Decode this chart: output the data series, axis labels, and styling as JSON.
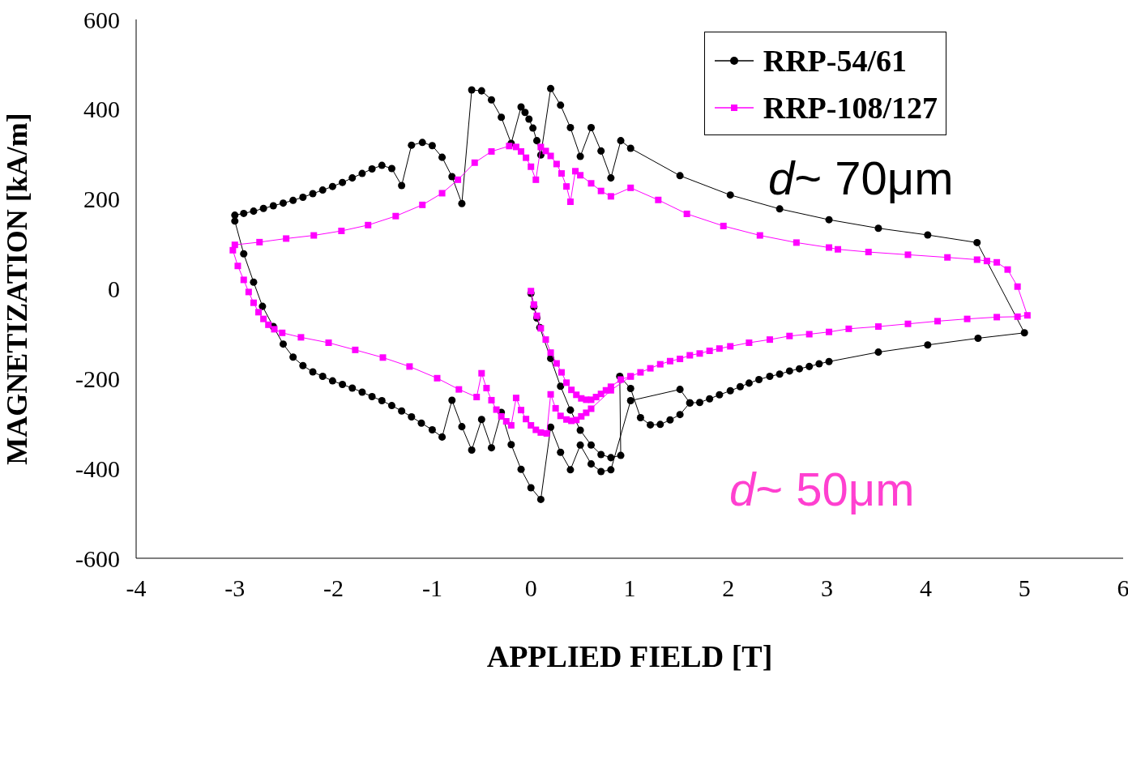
{
  "chart_data": {
    "type": "line",
    "xlabel": "APPLIED  FIELD [T]",
    "ylabel": "MAGNETIZATION [kA/m]",
    "xlim": [
      -4,
      6
    ],
    "xticks": [
      -4,
      -3,
      -2,
      -1,
      0,
      1,
      2,
      3,
      4,
      5,
      6
    ],
    "ylim": [
      -600,
      600
    ],
    "yticks": [
      -600,
      -400,
      -200,
      0,
      200,
      400,
      600
    ],
    "grid": false,
    "legend": "top right",
    "annotations": [
      "d~ 70μm",
      "d~ 50μm"
    ],
    "series": [
      {
        "name": "RRP-54/61",
        "color": "#000000",
        "marker": "circle",
        "x": [
          0,
          0.03,
          0.06,
          0.09,
          0.2,
          0.3,
          0.4,
          0.5,
          0.61,
          0.71,
          0.81,
          0.91,
          0.9,
          1.01,
          1.11,
          1.21,
          1.31,
          1.41,
          1.51,
          1.61,
          1.71,
          1.81,
          1.91,
          2.02,
          2.12,
          2.21,
          2.31,
          2.42,
          2.52,
          2.62,
          2.72,
          2.82,
          2.92,
          3.02,
          3.52,
          4.02,
          4.53,
          5.0,
          4.52,
          4.02,
          3.52,
          3.02,
          2.52,
          2.02,
          1.51,
          1.01,
          0.91,
          0.81,
          0.71,
          0.61,
          0.5,
          0.4,
          0.3,
          0.2,
          0.1,
          0.06,
          0.02,
          -0.02,
          -0.06,
          -0.1,
          -0.2,
          -0.3,
          -0.4,
          -0.5,
          -0.6,
          -0.7,
          -0.8,
          -0.9,
          -1.0,
          -1.1,
          -1.21,
          -1.31,
          -1.41,
          -1.51,
          -1.61,
          -1.71,
          -1.81,
          -1.91,
          -2.01,
          -2.11,
          -2.21,
          -2.31,
          -2.41,
          -2.51,
          -2.61,
          -2.71,
          -2.81,
          -2.91,
          -3.0,
          -3.0,
          -2.91,
          -2.81,
          -2.72,
          -2.61,
          -2.51,
          -2.41,
          -2.31,
          -2.21,
          -2.11,
          -2.01,
          -1.91,
          -1.81,
          -1.71,
          -1.61,
          -1.51,
          -1.41,
          -1.31,
          -1.21,
          -1.11,
          -1.0,
          -0.9,
          -0.8,
          -0.7,
          -0.6,
          -0.5,
          -0.4,
          -0.3,
          -0.2,
          -0.1,
          0.0,
          0.1,
          0.2,
          0.3,
          0.4,
          0.5,
          0.61,
          0.71,
          0.81,
          1.01,
          1.51,
          1.61
        ],
        "values": [
          -10,
          -40,
          -65,
          -86,
          -155,
          -217,
          -270,
          -315,
          -348,
          -369,
          -376,
          -371,
          -195,
          -222,
          -287,
          -303,
          -302,
          -292,
          -280,
          -254,
          -253,
          -245,
          -236,
          -227,
          -218,
          -210,
          -202,
          -195,
          -190,
          -183,
          -178,
          -173,
          -167,
          -162,
          -141,
          -125,
          -110,
          -98,
          103,
          120,
          135,
          154,
          178,
          209,
          252,
          313,
          330,
          247,
          307,
          359,
          295,
          359,
          409,
          446,
          298,
          330,
          358,
          378,
          393,
          405,
          324,
          382,
          421,
          441,
          443,
          190,
          250,
          293,
          319,
          326,
          320,
          230,
          268,
          275,
          267,
          257,
          247,
          237,
          228,
          220,
          212,
          204,
          197,
          191,
          185,
          179,
          173,
          168,
          164,
          151,
          78,
          15,
          -39,
          -84,
          -123,
          -152,
          -171,
          -185,
          -195,
          -205,
          -213,
          -221,
          -230,
          -240,
          -249,
          -260,
          -272,
          -285,
          -299,
          -314,
          -330,
          -248,
          -307,
          -359,
          -291,
          -354,
          -275,
          -347,
          -402,
          -443,
          -469,
          -308,
          -364,
          -403,
          -348,
          -390,
          -407,
          -403,
          -249,
          -224,
          -254
        ]
      },
      {
        "name": "RRP-108/127",
        "color": "#ff00ff",
        "marker": "square",
        "x": [
          0,
          0.03,
          0.06,
          0.1,
          0.15,
          0.2,
          0.26,
          0.31,
          0.36,
          0.41,
          0.46,
          0.51,
          0.56,
          0.61,
          0.66,
          0.71,
          0.76,
          0.81,
          0.91,
          1.01,
          1.11,
          1.21,
          1.31,
          1.41,
          1.51,
          1.61,
          1.71,
          1.81,
          1.91,
          2.02,
          2.21,
          2.42,
          2.62,
          2.82,
          3.02,
          3.22,
          3.52,
          3.82,
          4.12,
          4.42,
          4.72,
          4.93,
          5.03,
          4.93,
          4.83,
          4.72,
          4.62,
          4.52,
          4.22,
          3.82,
          3.42,
          3.11,
          3.02,
          2.69,
          2.32,
          1.95,
          1.58,
          1.29,
          1.01,
          0.81,
          0.71,
          0.61,
          0.5,
          0.45,
          0.4,
          0.36,
          0.31,
          0.26,
          0.2,
          0.15,
          0.1,
          0.05,
          0.0,
          -0.05,
          -0.1,
          -0.15,
          -0.22,
          -0.4,
          -0.57,
          -0.74,
          -0.9,
          -1.1,
          -1.37,
          -1.65,
          -1.92,
          -2.2,
          -2.48,
          -2.75,
          -3.0,
          -3.02,
          -2.97,
          -2.91,
          -2.86,
          -2.81,
          -2.76,
          -2.71,
          -2.66,
          -2.6,
          -2.52,
          -2.33,
          -2.05,
          -1.78,
          -1.5,
          -1.23,
          -0.95,
          -0.73,
          -0.55,
          -0.5,
          -0.45,
          -0.4,
          -0.35,
          -0.3,
          -0.25,
          -0.2,
          -0.15,
          -0.1,
          -0.05,
          0.0,
          0.05,
          0.1,
          0.16,
          0.2,
          0.25,
          0.3,
          0.36,
          0.41,
          0.46,
          0.51,
          0.56,
          0.61,
          0.81,
          1.01
        ],
        "values": [
          -5,
          -35,
          -60,
          -88,
          -113,
          -142,
          -166,
          -186,
          -209,
          -225,
          -236,
          -244,
          -247,
          -247,
          -241,
          -234,
          -226,
          -218,
          -202,
          -195,
          -186,
          -177,
          -168,
          -161,
          -156,
          -148,
          -144,
          -138,
          -133,
          -128,
          -120,
          -113,
          -105,
          -101,
          -96,
          -89,
          -84,
          -78,
          -72,
          -67,
          -63,
          -62,
          -59,
          5,
          43,
          59,
          62,
          65,
          70,
          76,
          82,
          88,
          92,
          103,
          119,
          140,
          167,
          198,
          225,
          206,
          218,
          235,
          253,
          262,
          194,
          228,
          257,
          278,
          296,
          307,
          316,
          243,
          272,
          292,
          306,
          316,
          318,
          306,
          281,
          243,
          213,
          187,
          162,
          142,
          129,
          119,
          112,
          104,
          98,
          86,
          51,
          20,
          -7,
          -31,
          -52,
          -67,
          -80,
          -90,
          -98,
          -108,
          -120,
          -136,
          -153,
          -173,
          -199,
          -224,
          -241,
          -188,
          -221,
          -248,
          -269,
          -284,
          -295,
          -304,
          -243,
          -270,
          -290,
          -304,
          -314,
          -320,
          -322,
          -235,
          -266,
          -283,
          -291,
          -294,
          -292,
          -284,
          -276,
          -267,
          -226,
          -195
        ]
      }
    ]
  }
}
